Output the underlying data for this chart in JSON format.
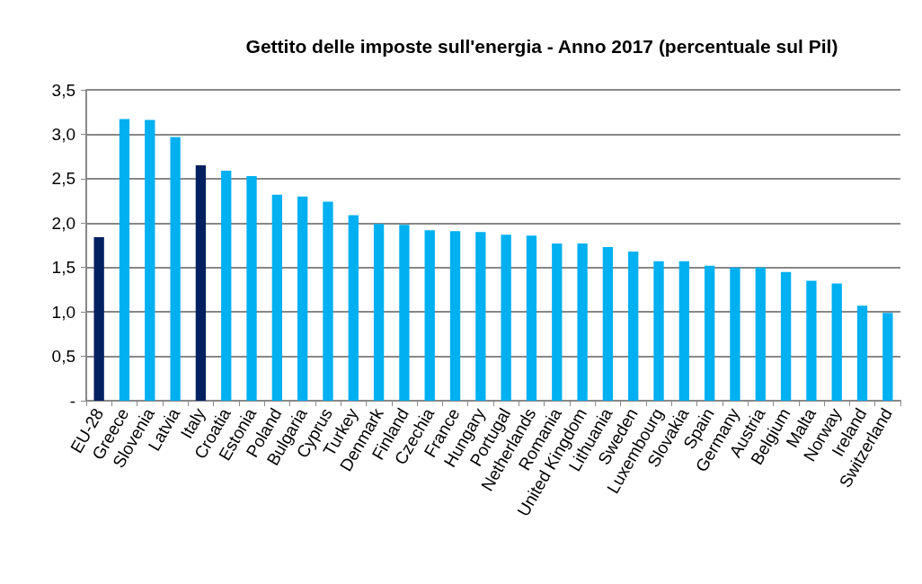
{
  "chart_data": {
    "type": "bar",
    "title": "Gettito delle imposte sull'energia - Anno 2017 (percentuale sul Pil)",
    "categories": [
      "EU-28",
      "Greece",
      "Slovenia",
      "Latvia",
      "Italy",
      "Croatia",
      "Estonia",
      "Poland",
      "Bulgaria",
      "Cyprus",
      "Turkey",
      "Denmark",
      "Finland",
      "Czechia",
      "France",
      "Hungary",
      "Portugal",
      "Netherlands",
      "Romania",
      "United Kingdom",
      "Lithuania",
      "Sweden",
      "Luxembourg",
      "Slovakia",
      "Spain",
      "Germany",
      "Austria",
      "Belgium",
      "Malta",
      "Norway",
      "Ireland",
      "Switzerland"
    ],
    "values": [
      1.84,
      3.17,
      3.16,
      2.97,
      2.65,
      2.59,
      2.53,
      2.32,
      2.3,
      2.24,
      2.09,
      1.99,
      1.98,
      1.92,
      1.91,
      1.9,
      1.87,
      1.86,
      1.77,
      1.77,
      1.73,
      1.68,
      1.57,
      1.57,
      1.52,
      1.5,
      1.5,
      1.45,
      1.35,
      1.32,
      1.07,
      0.99
    ],
    "colors": [
      "#002060",
      "#00b0f0",
      "#00b0f0",
      "#00b0f0",
      "#002060",
      "#00b0f0",
      "#00b0f0",
      "#00b0f0",
      "#00b0f0",
      "#00b0f0",
      "#00b0f0",
      "#00b0f0",
      "#00b0f0",
      "#00b0f0",
      "#00b0f0",
      "#00b0f0",
      "#00b0f0",
      "#00b0f0",
      "#00b0f0",
      "#00b0f0",
      "#00b0f0",
      "#00b0f0",
      "#00b0f0",
      "#00b0f0",
      "#00b0f0",
      "#00b0f0",
      "#00b0f0",
      "#00b0f0",
      "#00b0f0",
      "#00b0f0",
      "#00b0f0",
      "#00b0f0"
    ],
    "ylim": [
      0,
      3.5
    ],
    "yticks": [
      {
        "value": 0,
        "label": "-"
      },
      {
        "value": 0.5,
        "label": "0,5"
      },
      {
        "value": 1,
        "label": "1,0"
      },
      {
        "value": 1.5,
        "label": "1,5"
      },
      {
        "value": 2,
        "label": "2,0"
      },
      {
        "value": 2.5,
        "label": "2,5"
      },
      {
        "value": 3,
        "label": "3,0"
      },
      {
        "value": 3.5,
        "label": "3,5"
      }
    ],
    "grid": "y"
  }
}
